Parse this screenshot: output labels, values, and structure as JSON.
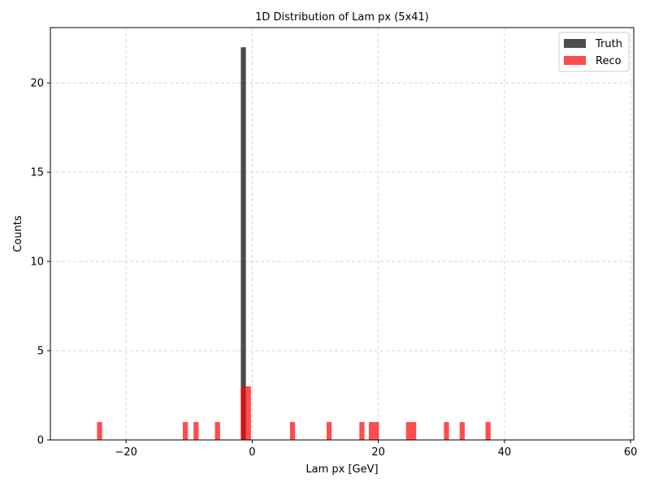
{
  "chart_data": {
    "type": "bar",
    "title": "1D Distribution of Lam px (5x41)",
    "xlabel": "Lam px [GeV]",
    "ylabel": "Counts",
    "xlim": [
      -32,
      60.5
    ],
    "ylim": [
      0,
      23.1
    ],
    "xticks": [
      -20,
      0,
      20,
      40,
      60
    ],
    "xtick_labels": [
      "−20",
      "0",
      "20",
      "40",
      "60"
    ],
    "yticks": [
      0,
      5,
      10,
      15,
      20
    ],
    "ytick_labels": [
      "0",
      "5",
      "10",
      "15",
      "20"
    ],
    "grid": true,
    "legend_position": "top-right",
    "bin_width": 0.8,
    "series": [
      {
        "name": "Truth",
        "color": "#000000",
        "opacity": 0.7,
        "bins": [
          {
            "x": -1.4,
            "count": 22
          }
        ]
      },
      {
        "name": "Reco",
        "color": "#ff0000",
        "opacity": 0.7,
        "bins": [
          {
            "x": -24.2,
            "count": 1
          },
          {
            "x": -10.6,
            "count": 1
          },
          {
            "x": -8.9,
            "count": 1
          },
          {
            "x": -5.5,
            "count": 1
          },
          {
            "x": -1.4,
            "count": 3
          },
          {
            "x": -0.6,
            "count": 3
          },
          {
            "x": 6.4,
            "count": 1
          },
          {
            "x": 12.2,
            "count": 1
          },
          {
            "x": 17.4,
            "count": 1
          },
          {
            "x": 18.9,
            "count": 1
          },
          {
            "x": 19.7,
            "count": 1
          },
          {
            "x": 24.8,
            "count": 1
          },
          {
            "x": 25.6,
            "count": 1
          },
          {
            "x": 30.8,
            "count": 1
          },
          {
            "x": 33.3,
            "count": 1
          },
          {
            "x": 37.4,
            "count": 1
          }
        ]
      }
    ]
  }
}
